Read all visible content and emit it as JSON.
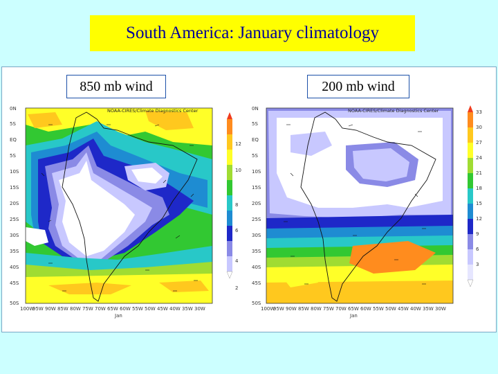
{
  "title": "South America: January climatology",
  "panels": [
    {
      "label": "850 mb wind",
      "credit": "NOAA-CIRES/Climate Diagnostics Center",
      "lat_labels": [
        "0N",
        "5S",
        "EQ",
        "5S",
        "10S",
        "15S",
        "20S",
        "25S",
        "30S",
        "35S",
        "40S",
        "45S",
        "50S"
      ],
      "lon_labels": [
        "100W",
        "95W",
        "90W",
        "85W",
        "80W",
        "75W",
        "70W",
        "65W",
        "60W",
        "55W",
        "50W",
        "45W",
        "40W",
        "35W",
        "30W"
      ],
      "month": "Jan",
      "colorbar": [
        "12",
        "10",
        "8",
        "6",
        "4",
        "2"
      ]
    },
    {
      "label": "200 mb wind",
      "credit": "NOAA-CIRES/Climate Diagnostics Center",
      "lat_labels": [
        "0N",
        "5S",
        "EQ",
        "5S",
        "10S",
        "15S",
        "20S",
        "25S",
        "30S",
        "35S",
        "40S",
        "45S",
        "50S"
      ],
      "lon_labels": [
        "100W",
        "95W",
        "90W",
        "85W",
        "80W",
        "75W",
        "70W",
        "65W",
        "60W",
        "55W",
        "50W",
        "45W",
        "40W",
        "35W",
        "30W"
      ],
      "month": "Jan",
      "colorbar": [
        "33",
        "30",
        "27",
        "24",
        "21",
        "18",
        "15",
        "12",
        "9",
        "6",
        "3"
      ]
    }
  ],
  "colors": {
    "background": "#ccffff",
    "title_bg": "#ffff00",
    "title_text": "#000099",
    "scale": [
      "#ffffff",
      "#c8c8ff",
      "#8a8ae6",
      "#1e28c8",
      "#1e8cd2",
      "#28c8c8",
      "#32c832",
      "#a0dc32",
      "#ffff28",
      "#ffc81e",
      "#ff8c1e",
      "#f03c1e"
    ]
  }
}
